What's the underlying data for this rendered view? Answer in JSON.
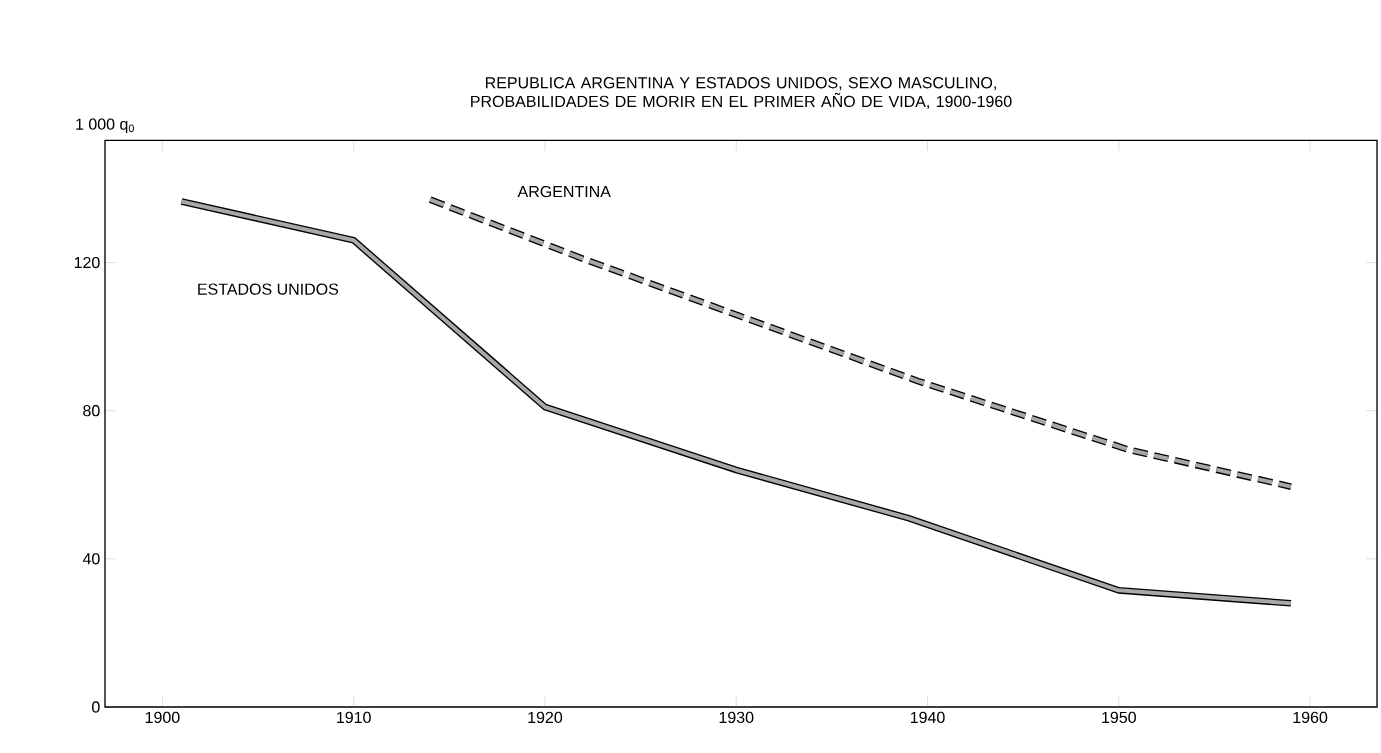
{
  "chart_data": {
    "type": "line",
    "title": "REPUBLICA ARGENTINA Y ESTADOS UNIDOS, SEXO MASCULINO, PROBABILIDADES DE MORIR EN EL PRIMER AÑO DE VIDA, 1900-1960",
    "ylabel": "1 000 q$_{0}$",
    "xlim": [
      1897,
      1963.5
    ],
    "ylim": [
      0,
      153
    ],
    "xticks": [
      1900,
      1910,
      1920,
      1930,
      1940,
      1950,
      1960
    ],
    "yticks": [
      0,
      40,
      80,
      120
    ],
    "series": [
      {
        "name": "ESTADOS UNIDOS",
        "color": "#a8a8a8",
        "line_style": "solid",
        "x": [
          1901,
          1910,
          1920,
          1930,
          1939,
          1950,
          1959
        ],
        "values": [
          136.5,
          126,
          81,
          64,
          51,
          31.5,
          28
        ]
      },
      {
        "name": "ARGENTINA",
        "color": "#a8a8a8",
        "line_style": "dashed",
        "x": [
          1914,
          1922,
          1939.5,
          1950.5,
          1959
        ],
        "values": [
          137,
          121,
          88,
          69.5,
          59.5
        ]
      }
    ]
  }
}
